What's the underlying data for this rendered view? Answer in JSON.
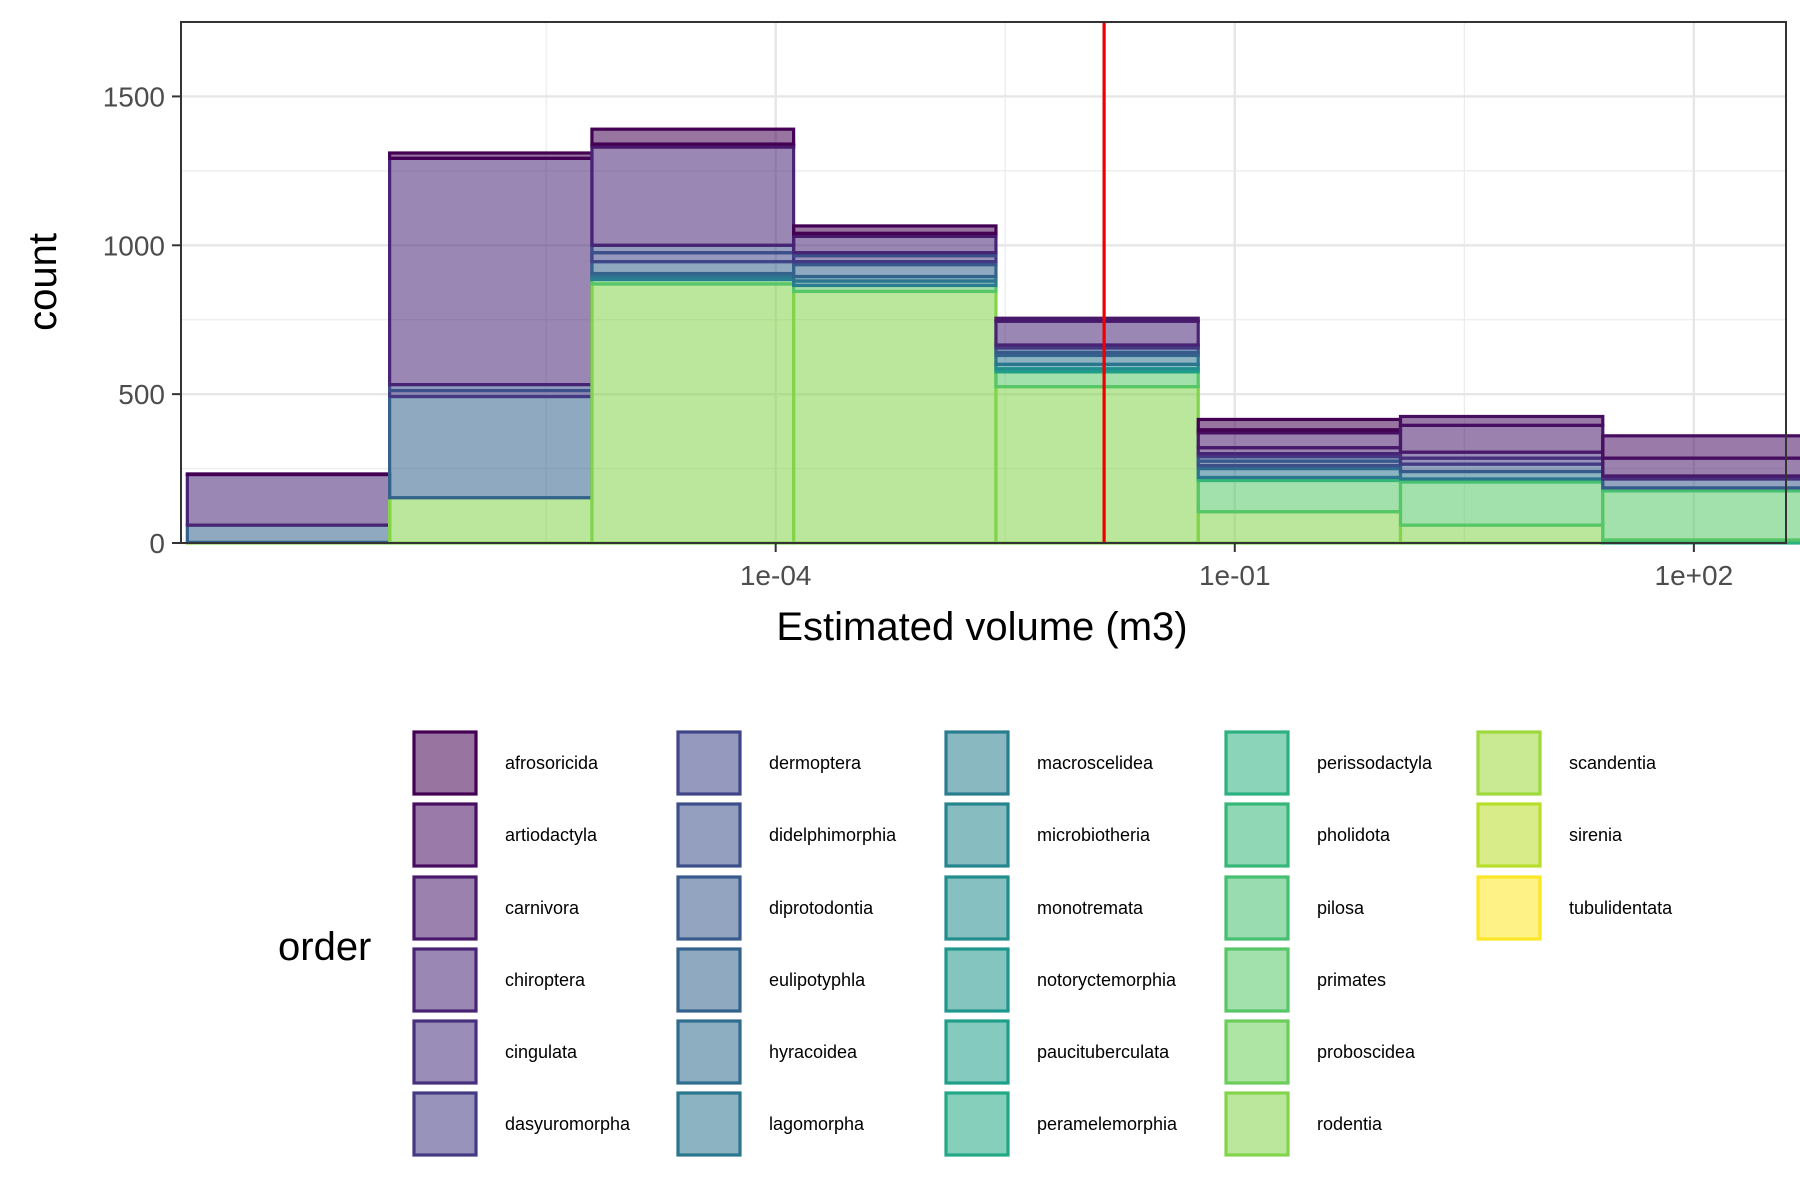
{
  "chart_data": {
    "type": "bar",
    "subtype": "stacked-histogram",
    "xlabel": "Estimated volume (m3)",
    "ylabel": "count",
    "x_scale": "log10",
    "x_ticks": [
      {
        "value": 0.0001,
        "label": "1e-04"
      },
      {
        "value": 0.1,
        "label": "1e-01"
      },
      {
        "value": 100,
        "label": "1e+02"
      }
    ],
    "x_range": [
      1.3e-08,
      400
    ],
    "y_ticks": [
      0,
      500,
      1000,
      1500
    ],
    "ylim": [
      0,
      1750
    ],
    "grid": true,
    "reference_line": {
      "x": 0.014,
      "color": "#ee0000"
    },
    "legend": {
      "title": "order",
      "position": "bottom"
    },
    "orders": [
      {
        "name": "afrosoricida",
        "color": "#440154"
      },
      {
        "name": "artiodactyla",
        "color": "#470D60"
      },
      {
        "name": "carnivora",
        "color": "#48196B"
      },
      {
        "name": "chiroptera",
        "color": "#482475"
      },
      {
        "name": "cingulata",
        "color": "#472F7D"
      },
      {
        "name": "dasyuromorpha",
        "color": "#443A83"
      },
      {
        "name": "dermoptera",
        "color": "#404588"
      },
      {
        "name": "didelphimorphia",
        "color": "#3C4F8A"
      },
      {
        "name": "diprotodontia",
        "color": "#38598C"
      },
      {
        "name": "eulipotyphla",
        "color": "#33638D"
      },
      {
        "name": "hyracoidea",
        "color": "#2F6C8E"
      },
      {
        "name": "lagomorpha",
        "color": "#2B758E"
      },
      {
        "name": "macroscelidea",
        "color": "#287D8E"
      },
      {
        "name": "microbiotheria",
        "color": "#25858E"
      },
      {
        "name": "monotremata",
        "color": "#228D8D"
      },
      {
        "name": "notoryctemorphia",
        "color": "#1F968B"
      },
      {
        "name": "paucituberculata",
        "color": "#1F9F88"
      },
      {
        "name": "peramelemorphia",
        "color": "#22A884"
      },
      {
        "name": "perissodactyla",
        "color": "#2BB07F"
      },
      {
        "name": "pholidota",
        "color": "#35B779"
      },
      {
        "name": "pilosa",
        "color": "#45BF70"
      },
      {
        "name": "primates",
        "color": "#56C667"
      },
      {
        "name": "proboscidea",
        "color": "#6CCD5A"
      },
      {
        "name": "rodentia",
        "color": "#84D44B"
      },
      {
        "name": "scandentia",
        "color": "#9DD93B"
      },
      {
        "name": "sirenia",
        "color": "#B8DE29"
      },
      {
        "name": "tubulidentata",
        "color": "#FDE725"
      }
    ],
    "bins": [
      {
        "x0": 1.43e-08,
        "x1": 3e-07,
        "segments": [
          [
            "rodentia",
            2
          ],
          [
            "eulipotyphla",
            58
          ],
          [
            "chiroptera",
            170
          ],
          [
            "afrosoricida",
            2
          ]
        ]
      },
      {
        "x0": 3e-07,
        "x1": 6.3e-06,
        "segments": [
          [
            "rodentia",
            152
          ],
          [
            "eulipotyphla",
            340
          ],
          [
            "dasyuromorpha",
            20
          ],
          [
            "didelphimorphia",
            20
          ],
          [
            "chiroptera",
            760
          ],
          [
            "afrosoricida",
            18
          ]
        ]
      },
      {
        "x0": 6.3e-06,
        "x1": 0.000131,
        "segments": [
          [
            "rodentia",
            870
          ],
          [
            "primates",
            15
          ],
          [
            "macroscelidea",
            10
          ],
          [
            "lagomorpha",
            10
          ],
          [
            "eulipotyphla",
            40
          ],
          [
            "dermoptera",
            30
          ],
          [
            "didelphimorphia",
            25
          ],
          [
            "chiroptera",
            330
          ],
          [
            "carnivora",
            10
          ],
          [
            "afrosoricida",
            50
          ]
        ]
      },
      {
        "x0": 0.000131,
        "x1": 0.00275,
        "segments": [
          [
            "rodentia",
            845
          ],
          [
            "primates",
            20
          ],
          [
            "macroscelidea",
            15
          ],
          [
            "lagomorpha",
            15
          ],
          [
            "eulipotyphla",
            40
          ],
          [
            "diprotodontia",
            10
          ],
          [
            "dasyuromorpha",
            20
          ],
          [
            "didelphimorphia",
            10
          ],
          [
            "chiroptera",
            55
          ],
          [
            "carnivora",
            10
          ],
          [
            "afrosoricida",
            25
          ]
        ]
      },
      {
        "x0": 0.00275,
        "x1": 0.0577,
        "segments": [
          [
            "rodentia",
            525
          ],
          [
            "primates",
            50
          ],
          [
            "paucituberculata",
            10
          ],
          [
            "monotremata",
            15
          ],
          [
            "lagomorpha",
            30
          ],
          [
            "eulipotyphla",
            10
          ],
          [
            "diprotodontia",
            15
          ],
          [
            "dasyuromorpha",
            10
          ],
          [
            "chiroptera",
            80
          ],
          [
            "carnivora",
            10
          ]
        ]
      },
      {
        "x0": 0.0577,
        "x1": 1.21,
        "segments": [
          [
            "rodentia",
            105
          ],
          [
            "primates",
            105
          ],
          [
            "pholidota",
            10
          ],
          [
            "lagomorpha",
            30
          ],
          [
            "hyracoidea",
            10
          ],
          [
            "didelphimorphia",
            15
          ],
          [
            "diprotodontia",
            15
          ],
          [
            "dasyuromorpha",
            10
          ],
          [
            "chiroptera",
            20
          ],
          [
            "carnivora",
            50
          ],
          [
            "artiodactyla",
            10
          ],
          [
            "afrosoricida",
            35
          ]
        ]
      },
      {
        "x0": 1.21,
        "x1": 25.4,
        "segments": [
          [
            "rodentia",
            60
          ],
          [
            "primates",
            145
          ],
          [
            "pilosa",
            10
          ],
          [
            "lagomorpha",
            25
          ],
          [
            "diprotodontia",
            25
          ],
          [
            "dasyuromorpha",
            20
          ],
          [
            "cingulata",
            20
          ],
          [
            "carnivora",
            90
          ],
          [
            "artiodactyla",
            30
          ]
        ]
      },
      {
        "x0": 25.4,
        "x1": 533,
        "segments": [
          [
            "perissodactyla",
            10
          ],
          [
            "primates",
            165
          ],
          [
            "pilosa",
            10
          ],
          [
            "diprotodontia",
            30
          ],
          [
            "cingulata",
            10
          ],
          [
            "carnivora",
            60
          ],
          [
            "artiodactyla",
            75
          ]
        ]
      }
    ]
  }
}
